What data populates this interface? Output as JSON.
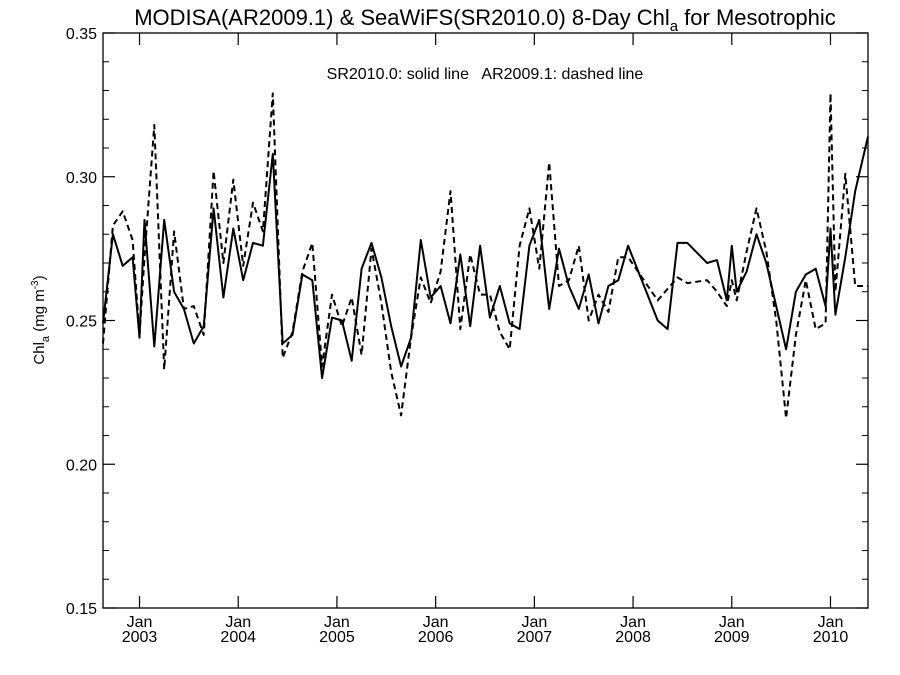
{
  "chart_data": {
    "type": "line",
    "title": "MODISA(AR2009.1) & SeaWiFS(SR2010.0) 8-Day Chl",
    "title_sub": "a",
    "title_tail": " for Mesotrophic",
    "annotation": "SR2010.0: solid line   AR2009.1: dashed line",
    "ylabel": {
      "main": "Chl",
      "sub": "a",
      "units": " (mg m",
      "sup": "-3",
      "close": ")"
    },
    "ylim": [
      0.15,
      0.35
    ],
    "xlim": [
      2002.63,
      2010.38
    ],
    "grid": false,
    "yticks": [
      {
        "value": 0.15,
        "label": "0.15"
      },
      {
        "value": 0.2,
        "label": "0.20"
      },
      {
        "value": 0.25,
        "label": "0.25"
      },
      {
        "value": 0.3,
        "label": "0.30"
      },
      {
        "value": 0.35,
        "label": "0.35"
      }
    ],
    "xticks": [
      {
        "value": 2003,
        "month": "Jan",
        "year": "2003"
      },
      {
        "value": 2004,
        "month": "Jan",
        "year": "2004"
      },
      {
        "value": 2005,
        "month": "Jan",
        "year": "2005"
      },
      {
        "value": 2006,
        "month": "Jan",
        "year": "2006"
      },
      {
        "value": 2007,
        "month": "Jan",
        "year": "2007"
      },
      {
        "value": 2008,
        "month": "Jan",
        "year": "2008"
      },
      {
        "value": 2009,
        "month": "Jan",
        "year": "2009"
      },
      {
        "value": 2010,
        "month": "Jan",
        "year": "2010"
      }
    ],
    "series": [
      {
        "style": "solid",
        "x": [
          2002.63,
          2002.73,
          2002.83,
          2002.93,
          2003.0,
          2003.05,
          2003.15,
          2003.25,
          2003.35,
          2003.45,
          2003.55,
          2003.65,
          2003.75,
          2003.85,
          2003.95,
          2004.05,
          2004.15,
          2004.25,
          2004.35,
          2004.45,
          2004.55,
          2004.65,
          2004.75,
          2004.85,
          2004.95,
          2005.05,
          2005.15,
          2005.25,
          2005.35,
          2005.45,
          2005.55,
          2005.65,
          2005.75,
          2005.85,
          2005.95,
          2006.05,
          2006.15,
          2006.25,
          2006.35,
          2006.45,
          2006.55,
          2006.65,
          2006.75,
          2006.85,
          2006.95,
          2007.05,
          2007.15,
          2007.25,
          2007.35,
          2007.45,
          2007.55,
          2007.65,
          2007.75,
          2007.85,
          2007.95,
          2008.25,
          2008.35,
          2008.45,
          2008.55,
          2008.75,
          2008.85,
          2008.95,
          2009.0,
          2009.05,
          2009.15,
          2009.25,
          2009.35,
          2009.45,
          2009.55,
          2009.65,
          2009.75,
          2009.85,
          2009.95,
          2010.0,
          2010.05,
          2010.15,
          2010.25,
          2010.38
        ],
        "values": [
          0.249,
          0.28,
          0.269,
          0.272,
          0.244,
          0.285,
          0.241,
          0.285,
          0.26,
          0.254,
          0.242,
          0.248,
          0.289,
          0.258,
          0.282,
          0.264,
          0.277,
          0.276,
          0.308,
          0.242,
          0.245,
          0.266,
          0.264,
          0.23,
          0.251,
          0.25,
          0.236,
          0.268,
          0.277,
          0.265,
          0.248,
          0.234,
          0.244,
          0.278,
          0.258,
          0.262,
          0.249,
          0.273,
          0.248,
          0.276,
          0.251,
          0.262,
          0.249,
          0.247,
          0.276,
          0.285,
          0.254,
          0.275,
          0.262,
          0.254,
          0.266,
          0.249,
          0.262,
          0.264,
          0.276,
          0.25,
          0.247,
          0.277,
          0.277,
          0.27,
          0.271,
          0.257,
          0.276,
          0.26,
          0.267,
          0.28,
          0.27,
          0.255,
          0.24,
          0.26,
          0.266,
          0.268,
          0.255,
          0.282,
          0.252,
          0.272,
          0.295,
          0.314
        ]
      },
      {
        "style": "dashed",
        "x": [
          2002.63,
          2002.73,
          2002.83,
          2002.93,
          2003.0,
          2003.05,
          2003.15,
          2003.25,
          2003.35,
          2003.45,
          2003.55,
          2003.65,
          2003.75,
          2003.85,
          2003.95,
          2004.05,
          2004.15,
          2004.25,
          2004.35,
          2004.45,
          2004.55,
          2004.65,
          2004.75,
          2004.85,
          2004.95,
          2005.05,
          2005.15,
          2005.25,
          2005.35,
          2005.45,
          2005.55,
          2005.65,
          2005.75,
          2005.85,
          2005.95,
          2006.05,
          2006.15,
          2006.25,
          2006.35,
          2006.45,
          2006.55,
          2006.65,
          2006.75,
          2006.85,
          2006.95,
          2007.05,
          2007.15,
          2007.25,
          2007.35,
          2007.45,
          2007.55,
          2007.65,
          2007.75,
          2007.85,
          2007.95,
          2008.25,
          2008.35,
          2008.45,
          2008.55,
          2008.75,
          2008.85,
          2008.95,
          2009.0,
          2009.05,
          2009.15,
          2009.25,
          2009.35,
          2009.45,
          2009.55,
          2009.65,
          2009.75,
          2009.85,
          2009.95,
          2010.0,
          2010.05,
          2010.15,
          2010.25,
          2010.38
        ],
        "values": [
          0.242,
          0.283,
          0.288,
          0.278,
          0.245,
          0.272,
          0.318,
          0.233,
          0.281,
          0.254,
          0.255,
          0.245,
          0.302,
          0.27,
          0.299,
          0.269,
          0.291,
          0.281,
          0.329,
          0.237,
          0.246,
          0.267,
          0.277,
          0.234,
          0.259,
          0.248,
          0.258,
          0.238,
          0.275,
          0.256,
          0.232,
          0.217,
          0.244,
          0.265,
          0.256,
          0.267,
          0.295,
          0.247,
          0.273,
          0.259,
          0.259,
          0.246,
          0.24,
          0.276,
          0.289,
          0.268,
          0.305,
          0.262,
          0.264,
          0.276,
          0.25,
          0.259,
          0.253,
          0.272,
          0.272,
          0.257,
          0.261,
          0.265,
          0.263,
          0.264,
          0.26,
          0.255,
          0.264,
          0.257,
          0.274,
          0.289,
          0.274,
          0.25,
          0.216,
          0.245,
          0.264,
          0.247,
          0.249,
          0.329,
          0.26,
          0.301,
          0.262,
          0.262
        ]
      }
    ]
  }
}
